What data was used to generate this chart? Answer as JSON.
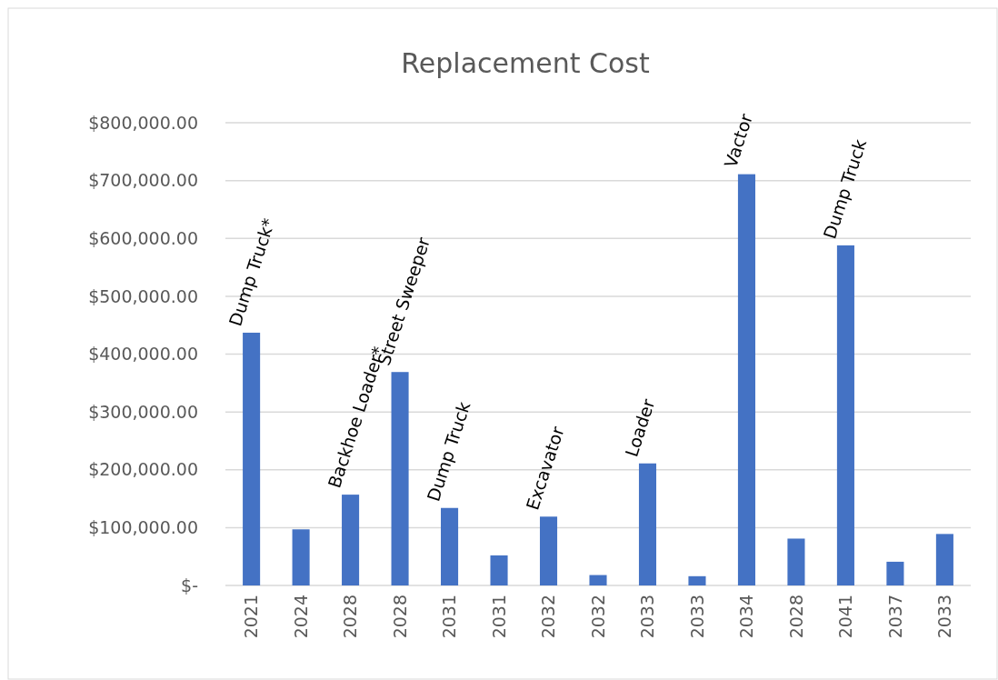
{
  "chart_data": {
    "type": "bar",
    "title": "Replacement Cost",
    "categories": [
      "2021",
      "2024",
      "2028",
      "2028",
      "2031",
      "2031",
      "2032",
      "2032",
      "2033",
      "2033",
      "2034",
      "2028",
      "2041",
      "2037",
      "2033"
    ],
    "values": [
      437000,
      97000,
      157000,
      369000,
      134000,
      52000,
      119000,
      18000,
      211000,
      16000,
      711000,
      81000,
      588000,
      41000,
      89000
    ],
    "value_labels": [
      "Dump Truck*",
      null,
      "Backhoe Loader*",
      "Street Sweeper",
      "Dump Truck",
      null,
      "Excavator",
      null,
      "Loader",
      null,
      "Vactor",
      null,
      "Dump Truck",
      null,
      null
    ],
    "color": "#4472c4",
    "ylim": [
      0,
      800000
    ],
    "yticks": [
      {
        "value": 0,
        "label": "$-"
      },
      {
        "value": 100000,
        "label": "$100,000.00"
      },
      {
        "value": 200000,
        "label": "$200,000.00"
      },
      {
        "value": 300000,
        "label": "$300,000.00"
      },
      {
        "value": 400000,
        "label": "$400,000.00"
      },
      {
        "value": 500000,
        "label": "$500,000.00"
      },
      {
        "value": 600000,
        "label": "$600,000.00"
      },
      {
        "value": 700000,
        "label": "$700,000.00"
      },
      {
        "value": 800000,
        "label": "$800,000.00"
      }
    ],
    "grid": "y"
  }
}
